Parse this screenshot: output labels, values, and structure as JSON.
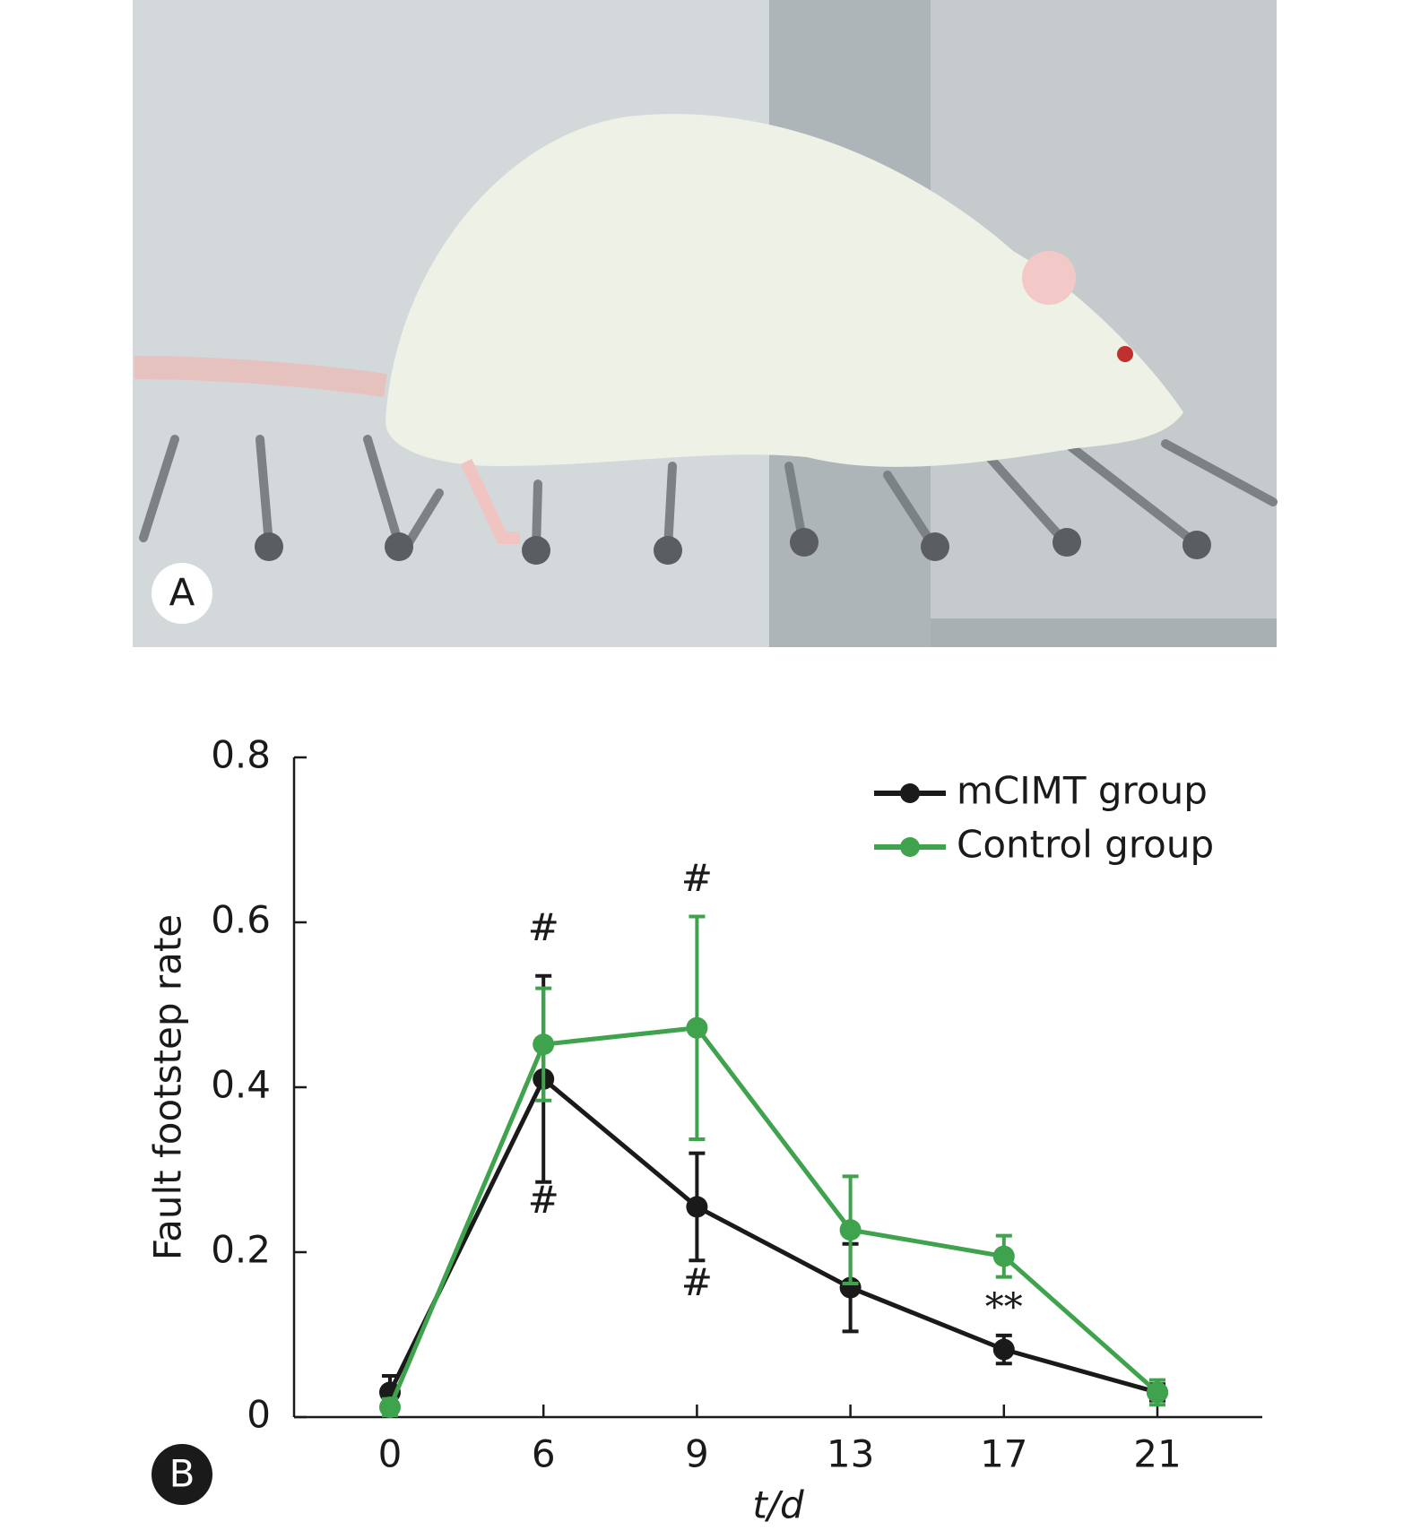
{
  "chart_data": {
    "type": "line",
    "panel_labels": [
      "A",
      "B"
    ],
    "x_label": "t/d",
    "y_label": "Fault footstep rate",
    "categories": [
      "0",
      "6",
      "9",
      "13",
      "17",
      "21"
    ],
    "series": [
      {
        "name": "mCIMT group",
        "color": "#1a1a1a",
        "values": [
          0.03,
          0.41,
          0.255,
          0.157,
          0.082,
          0.03
        ],
        "errors": [
          0.02,
          0.125,
          0.065,
          0.053,
          0.017,
          0.01
        ]
      },
      {
        "name": "Control group",
        "color": "#3fa34d",
        "values": [
          0.012,
          0.452,
          0.472,
          0.227,
          0.195,
          0.03
        ],
        "errors": [
          0.01,
          0.068,
          0.135,
          0.065,
          0.025,
          0.015
        ]
      }
    ],
    "annotations": [
      {
        "text": "#"
      },
      {
        "text": "#"
      },
      {
        "text": "#"
      },
      {
        "text": "#"
      },
      {
        "text": "**"
      }
    ],
    "ylim": [
      0,
      0.8
    ],
    "yticks": [
      0,
      0.2,
      0.4,
      0.6,
      0.8
    ],
    "legend": "upper-right"
  }
}
